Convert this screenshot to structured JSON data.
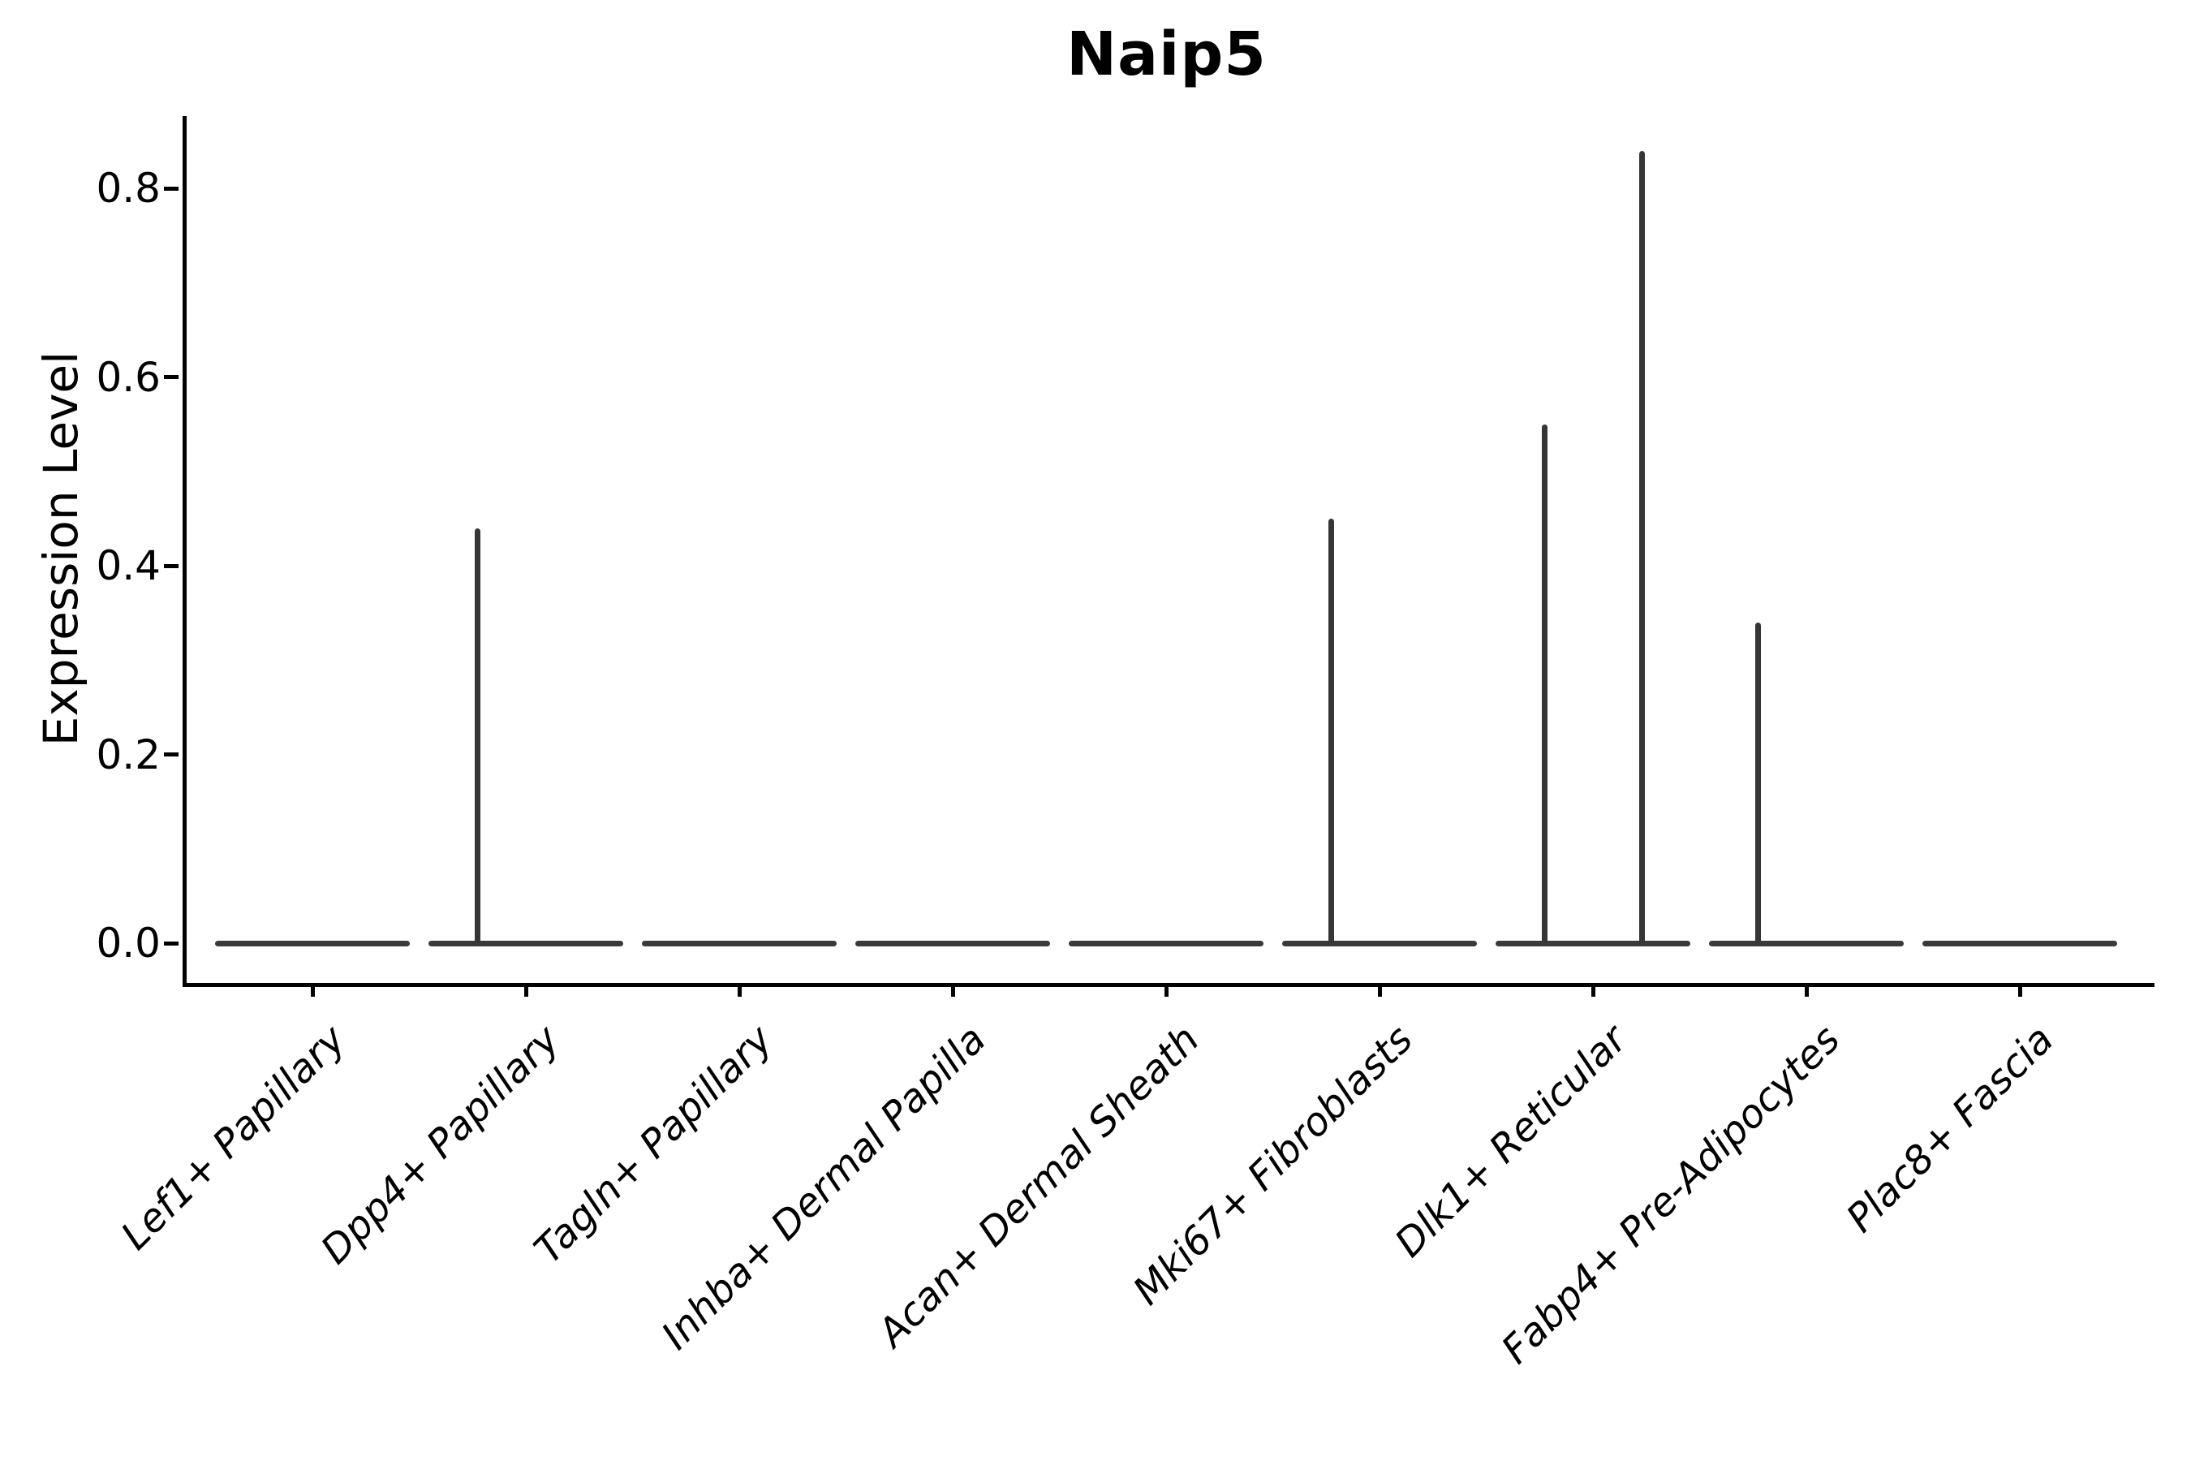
{
  "chart_data": {
    "type": "violin",
    "title": "Naip5",
    "ylabel": "Expression Level",
    "xlabel": "",
    "yticks": [
      {
        "label": "0.0",
        "value": 0.0
      },
      {
        "label": "0.2",
        "value": 0.2
      },
      {
        "label": "0.4",
        "value": 0.4
      },
      {
        "label": "0.6",
        "value": 0.6
      },
      {
        "label": "0.8",
        "value": 0.8
      }
    ],
    "ylim": [
      -0.04,
      0.88
    ],
    "grid": false,
    "legend": "none",
    "xticklabel_rotation_deg": 45,
    "xticklabel_style": "italic",
    "categories": [
      "Lef1+ Papillary",
      "Dpp4+ Papillary",
      "Tagln+ Papillary",
      "Inhba+ Dermal Papilla",
      "Acan+ Dermal Sheath",
      "Mki67+ Fibroblasts",
      "Dlk1+ Reticular",
      "Fabp4+ Pre-Adipocytes",
      "Plac8+ Fascia"
    ],
    "violins": [
      {
        "category": "Lef1+ Papillary",
        "bulk_expression": 0.0,
        "spikes": []
      },
      {
        "category": "Dpp4+ Papillary",
        "bulk_expression": 0.0,
        "spikes": [
          {
            "side": "left",
            "value": 0.44
          }
        ]
      },
      {
        "category": "Tagln+ Papillary",
        "bulk_expression": 0.0,
        "spikes": []
      },
      {
        "category": "Inhba+ Dermal Papilla",
        "bulk_expression": 0.0,
        "spikes": []
      },
      {
        "category": "Acan+ Dermal Sheath",
        "bulk_expression": 0.0,
        "spikes": []
      },
      {
        "category": "Mki67+ Fibroblasts",
        "bulk_expression": 0.0,
        "spikes": [
          {
            "side": "left",
            "value": 0.45
          }
        ]
      },
      {
        "category": "Dlk1+ Reticular",
        "bulk_expression": 0.0,
        "spikes": [
          {
            "side": "left",
            "value": 0.55
          },
          {
            "side": "right",
            "value": 0.84
          }
        ]
      },
      {
        "category": "Fabp4+ Pre-Adipocytes",
        "bulk_expression": 0.0,
        "spikes": [
          {
            "side": "left",
            "value": 0.34
          }
        ]
      },
      {
        "category": "Plac8+ Fascia",
        "bulk_expression": 0.0,
        "spikes": []
      }
    ],
    "colors": {
      "violin_body": "#3a3a3a",
      "violin_spike": "#363636",
      "axis": "#000000",
      "text": "#000000",
      "background": "#ffffff"
    }
  }
}
